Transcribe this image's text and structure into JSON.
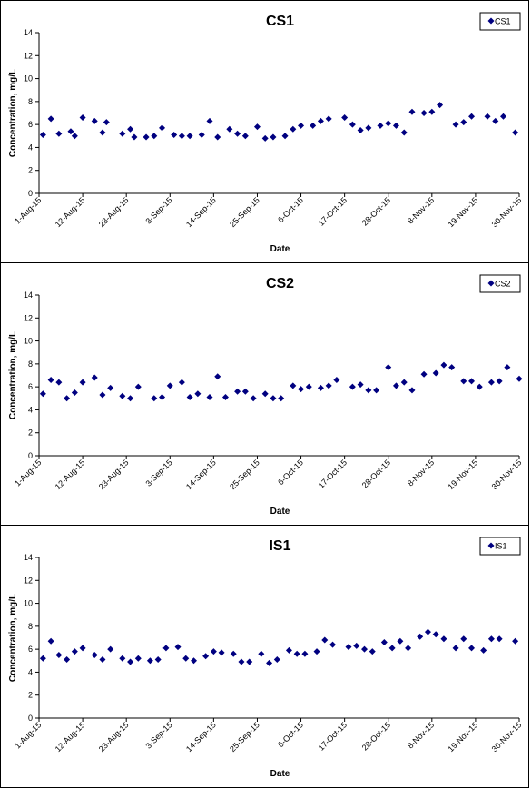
{
  "chart_data": [
    {
      "type": "scatter",
      "title": "CS1",
      "xlabel": "Date",
      "ylabel": "Concentration, mg/L",
      "legend": {
        "entries": [
          "CS1"
        ],
        "placement": "top-right"
      },
      "ylim": [
        0,
        14
      ],
      "yticks": [
        "0",
        "2",
        "4",
        "6",
        "8",
        "10",
        "12",
        "14"
      ],
      "xlim": [
        "2015-08-01",
        "2015-11-30"
      ],
      "xticks": [
        {
          "date": "2015-08-01",
          "label": "1-Aug-15"
        },
        {
          "date": "2015-08-12",
          "label": "12-Aug-15"
        },
        {
          "date": "2015-08-23",
          "label": "23-Aug-15"
        },
        {
          "date": "2015-09-03",
          "label": "3-Sep-15"
        },
        {
          "date": "2015-09-14",
          "label": "14-Sep-15"
        },
        {
          "date": "2015-09-25",
          "label": "25-Sep-15"
        },
        {
          "date": "2015-10-06",
          "label": "6-Oct-15"
        },
        {
          "date": "2015-10-17",
          "label": "17-Oct-15"
        },
        {
          "date": "2015-10-28",
          "label": "28-Oct-15"
        },
        {
          "date": "2015-11-08",
          "label": "8-Nov-15"
        },
        {
          "date": "2015-11-19",
          "label": "19-Nov-15"
        },
        {
          "date": "2015-11-30",
          "label": "30-Nov-15"
        }
      ],
      "grid": false,
      "color": "#000080",
      "series": [
        {
          "name": "CS1",
          "marker": "diamond",
          "points": [
            [
              "2015-08-02",
              5.1
            ],
            [
              "2015-08-04",
              6.5
            ],
            [
              "2015-08-06",
              5.2
            ],
            [
              "2015-08-09",
              5.4
            ],
            [
              "2015-08-10",
              5.0
            ],
            [
              "2015-08-12",
              6.6
            ],
            [
              "2015-08-15",
              6.3
            ],
            [
              "2015-08-17",
              5.3
            ],
            [
              "2015-08-18",
              6.2
            ],
            [
              "2015-08-22",
              5.2
            ],
            [
              "2015-08-24",
              5.6
            ],
            [
              "2015-08-25",
              4.9
            ],
            [
              "2015-08-28",
              4.9
            ],
            [
              "2015-08-30",
              5.0
            ],
            [
              "2015-09-01",
              5.7
            ],
            [
              "2015-09-04",
              5.1
            ],
            [
              "2015-09-06",
              5.0
            ],
            [
              "2015-09-08",
              5.0
            ],
            [
              "2015-09-11",
              5.1
            ],
            [
              "2015-09-13",
              6.3
            ],
            [
              "2015-09-15",
              4.9
            ],
            [
              "2015-09-18",
              5.6
            ],
            [
              "2015-09-20",
              5.2
            ],
            [
              "2015-09-22",
              5.0
            ],
            [
              "2015-09-25",
              5.8
            ],
            [
              "2015-09-27",
              4.8
            ],
            [
              "2015-09-29",
              4.9
            ],
            [
              "2015-10-02",
              5.0
            ],
            [
              "2015-10-04",
              5.6
            ],
            [
              "2015-10-06",
              5.9
            ],
            [
              "2015-10-09",
              5.9
            ],
            [
              "2015-10-11",
              6.3
            ],
            [
              "2015-10-13",
              6.5
            ],
            [
              "2015-10-17",
              6.6
            ],
            [
              "2015-10-19",
              6.0
            ],
            [
              "2015-10-21",
              5.5
            ],
            [
              "2015-10-23",
              5.7
            ],
            [
              "2015-10-26",
              5.9
            ],
            [
              "2015-10-28",
              6.1
            ],
            [
              "2015-10-30",
              5.9
            ],
            [
              "2015-11-01",
              5.3
            ],
            [
              "2015-11-03",
              7.1
            ],
            [
              "2015-11-06",
              7.0
            ],
            [
              "2015-11-08",
              7.1
            ],
            [
              "2015-11-10",
              7.7
            ],
            [
              "2015-11-14",
              6.0
            ],
            [
              "2015-11-16",
              6.2
            ],
            [
              "2015-11-18",
              6.7
            ],
            [
              "2015-11-22",
              6.7
            ],
            [
              "2015-11-24",
              6.3
            ],
            [
              "2015-11-26",
              6.7
            ],
            [
              "2015-11-29",
              5.3
            ]
          ]
        }
      ]
    },
    {
      "type": "scatter",
      "title": "CS2",
      "xlabel": "Date",
      "ylabel": "Concentration, mg/L",
      "legend": {
        "entries": [
          "CS2"
        ],
        "placement": "top-right"
      },
      "ylim": [
        0,
        14
      ],
      "yticks": [
        "0",
        "2",
        "4",
        "6",
        "8",
        "10",
        "12",
        "14"
      ],
      "xlim": [
        "2015-08-01",
        "2015-11-30"
      ],
      "xticks": [
        {
          "date": "2015-08-01",
          "label": "1-Aug-15"
        },
        {
          "date": "2015-08-12",
          "label": "12-Aug-15"
        },
        {
          "date": "2015-08-23",
          "label": "23-Aug-15"
        },
        {
          "date": "2015-09-03",
          "label": "3-Sep-15"
        },
        {
          "date": "2015-09-14",
          "label": "14-Sep-15"
        },
        {
          "date": "2015-09-25",
          "label": "25-Sep-15"
        },
        {
          "date": "2015-10-06",
          "label": "6-Oct-15"
        },
        {
          "date": "2015-10-17",
          "label": "17-Oct-15"
        },
        {
          "date": "2015-10-28",
          "label": "28-Oct-15"
        },
        {
          "date": "2015-11-08",
          "label": "8-Nov-15"
        },
        {
          "date": "2015-11-19",
          "label": "19-Nov-15"
        },
        {
          "date": "2015-11-30",
          "label": "30-Nov-15"
        }
      ],
      "grid": false,
      "color": "#000080",
      "series": [
        {
          "name": "CS2",
          "marker": "diamond",
          "points": [
            [
              "2015-08-02",
              5.4
            ],
            [
              "2015-08-04",
              6.6
            ],
            [
              "2015-08-06",
              6.4
            ],
            [
              "2015-08-08",
              5.0
            ],
            [
              "2015-08-10",
              5.5
            ],
            [
              "2015-08-12",
              6.4
            ],
            [
              "2015-08-15",
              6.8
            ],
            [
              "2015-08-17",
              5.3
            ],
            [
              "2015-08-19",
              5.9
            ],
            [
              "2015-08-22",
              5.2
            ],
            [
              "2015-08-24",
              5.0
            ],
            [
              "2015-08-26",
              6.0
            ],
            [
              "2015-08-30",
              5.0
            ],
            [
              "2015-09-01",
              5.1
            ],
            [
              "2015-09-03",
              6.1
            ],
            [
              "2015-09-06",
              6.4
            ],
            [
              "2015-09-08",
              5.1
            ],
            [
              "2015-09-10",
              5.4
            ],
            [
              "2015-09-13",
              5.1
            ],
            [
              "2015-09-15",
              6.9
            ],
            [
              "2015-09-17",
              5.1
            ],
            [
              "2015-09-20",
              5.6
            ],
            [
              "2015-09-22",
              5.6
            ],
            [
              "2015-09-24",
              5.0
            ],
            [
              "2015-09-27",
              5.4
            ],
            [
              "2015-09-29",
              5.0
            ],
            [
              "2015-10-01",
              5.0
            ],
            [
              "2015-10-04",
              6.1
            ],
            [
              "2015-10-06",
              5.8
            ],
            [
              "2015-10-08",
              6.0
            ],
            [
              "2015-10-11",
              5.9
            ],
            [
              "2015-10-13",
              6.1
            ],
            [
              "2015-10-15",
              6.6
            ],
            [
              "2015-10-19",
              6.0
            ],
            [
              "2015-10-21",
              6.2
            ],
            [
              "2015-10-23",
              5.7
            ],
            [
              "2015-10-25",
              5.7
            ],
            [
              "2015-10-28",
              7.7
            ],
            [
              "2015-10-30",
              6.1
            ],
            [
              "2015-11-01",
              6.4
            ],
            [
              "2015-11-03",
              5.7
            ],
            [
              "2015-11-06",
              7.1
            ],
            [
              "2015-11-09",
              7.2
            ],
            [
              "2015-11-11",
              7.9
            ],
            [
              "2015-11-13",
              7.7
            ],
            [
              "2015-11-16",
              6.5
            ],
            [
              "2015-11-18",
              6.5
            ],
            [
              "2015-11-20",
              6.0
            ],
            [
              "2015-11-23",
              6.4
            ],
            [
              "2015-11-25",
              6.5
            ],
            [
              "2015-11-27",
              7.7
            ],
            [
              "2015-11-30",
              6.7
            ]
          ]
        }
      ]
    },
    {
      "type": "scatter",
      "title": "IS1",
      "xlabel": "Date",
      "ylabel": "Concentration, mg/L",
      "legend": {
        "entries": [
          "IS1"
        ],
        "placement": "top-right"
      },
      "ylim": [
        0,
        14
      ],
      "yticks": [
        "0",
        "2",
        "4",
        "6",
        "8",
        "10",
        "12",
        "14"
      ],
      "xlim": [
        "2015-08-01",
        "2015-11-30"
      ],
      "xticks": [
        {
          "date": "2015-08-01",
          "label": "1-Aug-15"
        },
        {
          "date": "2015-08-12",
          "label": "12-Aug-15"
        },
        {
          "date": "2015-08-23",
          "label": "23-Aug-15"
        },
        {
          "date": "2015-09-03",
          "label": "3-Sep-15"
        },
        {
          "date": "2015-09-14",
          "label": "14-Sep-15"
        },
        {
          "date": "2015-09-25",
          "label": "25-Sep-15"
        },
        {
          "date": "2015-10-06",
          "label": "6-Oct-15"
        },
        {
          "date": "2015-10-17",
          "label": "17-Oct-15"
        },
        {
          "date": "2015-10-28",
          "label": "28-Oct-15"
        },
        {
          "date": "2015-11-08",
          "label": "8-Nov-15"
        },
        {
          "date": "2015-11-19",
          "label": "19-Nov-15"
        },
        {
          "date": "2015-11-30",
          "label": "30-Nov-15"
        }
      ],
      "grid": false,
      "color": "#000080",
      "series": [
        {
          "name": "IS1",
          "marker": "diamond",
          "points": [
            [
              "2015-08-02",
              5.2
            ],
            [
              "2015-08-04",
              6.7
            ],
            [
              "2015-08-06",
              5.5
            ],
            [
              "2015-08-08",
              5.1
            ],
            [
              "2015-08-10",
              5.8
            ],
            [
              "2015-08-12",
              6.1
            ],
            [
              "2015-08-15",
              5.5
            ],
            [
              "2015-08-17",
              5.1
            ],
            [
              "2015-08-19",
              6.0
            ],
            [
              "2015-08-22",
              5.2
            ],
            [
              "2015-08-24",
              4.9
            ],
            [
              "2015-08-26",
              5.2
            ],
            [
              "2015-08-29",
              5.0
            ],
            [
              "2015-08-31",
              5.1
            ],
            [
              "2015-09-02",
              6.1
            ],
            [
              "2015-09-05",
              6.2
            ],
            [
              "2015-09-07",
              5.2
            ],
            [
              "2015-09-09",
              5.0
            ],
            [
              "2015-09-12",
              5.4
            ],
            [
              "2015-09-14",
              5.8
            ],
            [
              "2015-09-16",
              5.7
            ],
            [
              "2015-09-19",
              5.6
            ],
            [
              "2015-09-21",
              4.9
            ],
            [
              "2015-09-23",
              4.9
            ],
            [
              "2015-09-26",
              5.6
            ],
            [
              "2015-09-28",
              4.8
            ],
            [
              "2015-09-30",
              5.1
            ],
            [
              "2015-10-03",
              5.9
            ],
            [
              "2015-10-05",
              5.6
            ],
            [
              "2015-10-07",
              5.6
            ],
            [
              "2015-10-10",
              5.8
            ],
            [
              "2015-10-12",
              6.8
            ],
            [
              "2015-10-14",
              6.4
            ],
            [
              "2015-10-18",
              6.2
            ],
            [
              "2015-10-20",
              6.3
            ],
            [
              "2015-10-22",
              6.0
            ],
            [
              "2015-10-24",
              5.8
            ],
            [
              "2015-10-27",
              6.6
            ],
            [
              "2015-10-29",
              6.1
            ],
            [
              "2015-10-31",
              6.7
            ],
            [
              "2015-11-02",
              6.1
            ],
            [
              "2015-11-05",
              7.1
            ],
            [
              "2015-11-07",
              7.5
            ],
            [
              "2015-11-09",
              7.3
            ],
            [
              "2015-11-11",
              6.9
            ],
            [
              "2015-11-14",
              6.1
            ],
            [
              "2015-11-16",
              6.9
            ],
            [
              "2015-11-18",
              6.1
            ],
            [
              "2015-11-21",
              5.9
            ],
            [
              "2015-11-23",
              6.9
            ],
            [
              "2015-11-25",
              6.9
            ],
            [
              "2015-11-29",
              6.7
            ]
          ]
        }
      ]
    }
  ]
}
